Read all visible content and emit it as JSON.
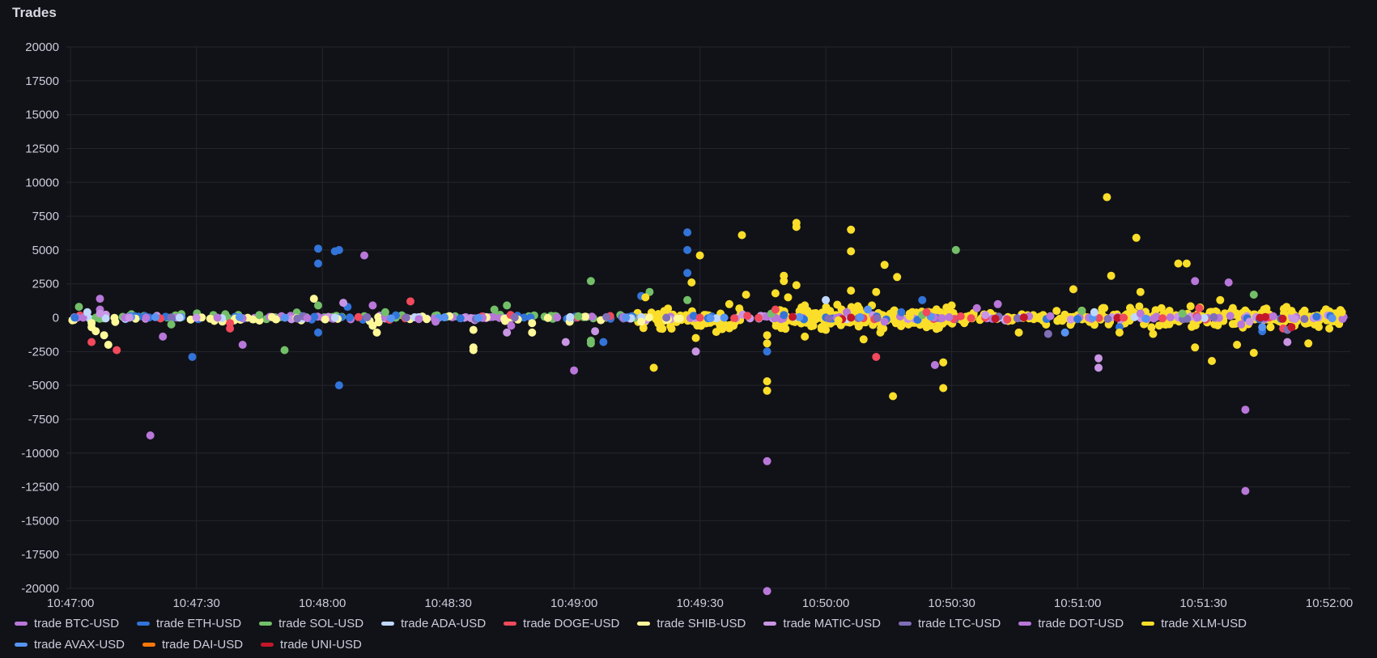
{
  "panel": {
    "title": "Trades"
  },
  "chart_data": {
    "type": "scatter",
    "title": "Trades",
    "xlabel": "",
    "ylabel": "",
    "xlim": [
      "10:46:59",
      "10:52:05"
    ],
    "ylim": [
      -20000,
      20000
    ],
    "x_ticks": [
      "10:47:00",
      "10:47:30",
      "10:48:00",
      "10:48:30",
      "10:49:00",
      "10:49:30",
      "10:50:00",
      "10:50:30",
      "10:51:00",
      "10:51:30",
      "10:52:00"
    ],
    "y_ticks": [
      20000,
      17500,
      15000,
      12500,
      10000,
      7500,
      5000,
      2500,
      0,
      -2500,
      -5000,
      -7500,
      -10000,
      -12500,
      -15000,
      -17500,
      -20000
    ],
    "grid": true,
    "legend_position": "bottom",
    "series": [
      {
        "name": "trade BTC-USD",
        "color": "#b877d9",
        "points": [
          [
            "10:47:03",
            0
          ],
          [
            "10:47:07",
            1400
          ],
          [
            "10:47:07",
            600
          ],
          [
            "10:47:13",
            0
          ],
          [
            "10:47:19",
            -8700
          ],
          [
            "10:47:22",
            -1400
          ],
          [
            "10:47:35",
            0
          ],
          [
            "10:47:41",
            -2000
          ],
          [
            "10:48:10",
            4600
          ],
          [
            "10:48:12",
            900
          ],
          [
            "10:48:23",
            -100
          ],
          [
            "10:48:45",
            -600
          ],
          [
            "10:49:00",
            -3900
          ],
          [
            "10:49:48",
            0
          ],
          [
            "10:50:05",
            400
          ],
          [
            "10:50:26",
            -3500
          ],
          [
            "10:50:36",
            700
          ],
          [
            "10:50:41",
            1000
          ],
          [
            "10:51:15",
            300
          ],
          [
            "10:51:28",
            2700
          ],
          [
            "10:51:40",
            -6800
          ],
          [
            "10:51:40",
            -12800
          ]
        ]
      },
      {
        "name": "trade ETH-USD",
        "color": "#3274d9",
        "points": [
          [
            "10:47:01",
            0
          ],
          [
            "10:47:29",
            -2900
          ],
          [
            "10:47:59",
            5100
          ],
          [
            "10:47:59",
            4000
          ],
          [
            "10:47:59",
            -1100
          ],
          [
            "10:48:03",
            4900
          ],
          [
            "10:48:04",
            5000
          ],
          [
            "10:48:04",
            -5000
          ],
          [
            "10:48:06",
            800
          ],
          [
            "10:49:07",
            -1800
          ],
          [
            "10:49:16",
            1600
          ],
          [
            "10:49:27",
            6300
          ],
          [
            "10:49:27",
            5000
          ],
          [
            "10:49:27",
            3300
          ],
          [
            "10:49:46",
            -2500
          ],
          [
            "10:49:50",
            200
          ],
          [
            "10:50:18",
            400
          ],
          [
            "10:50:23",
            1300
          ],
          [
            "10:51:00",
            -100
          ],
          [
            "10:51:10",
            -700
          ],
          [
            "10:51:44",
            -1000
          ]
        ]
      },
      {
        "name": "trade SOL-USD",
        "color": "#73bf69",
        "points": [
          [
            "10:47:02",
            800
          ],
          [
            "10:47:06",
            0
          ],
          [
            "10:47:24",
            -500
          ],
          [
            "10:47:45",
            200
          ],
          [
            "10:47:51",
            -2400
          ],
          [
            "10:47:59",
            900
          ],
          [
            "10:48:15",
            400
          ],
          [
            "10:48:41",
            600
          ],
          [
            "10:48:44",
            900
          ],
          [
            "10:49:01",
            100
          ],
          [
            "10:49:04",
            2700
          ],
          [
            "10:49:04",
            -1700
          ],
          [
            "10:49:04",
            -1900
          ],
          [
            "10:49:18",
            1900
          ],
          [
            "10:49:27",
            1300
          ],
          [
            "10:49:47",
            300
          ],
          [
            "10:50:23",
            200
          ],
          [
            "10:50:31",
            5000
          ],
          [
            "10:51:01",
            500
          ],
          [
            "10:51:25",
            300
          ],
          [
            "10:51:42",
            1700
          ]
        ]
      },
      {
        "name": "trade ADA-USD",
        "color": "#c0d8ff",
        "points": [
          [
            "10:47:04",
            400
          ],
          [
            "10:47:26",
            0
          ],
          [
            "10:48:03",
            0
          ],
          [
            "10:50:00",
            1300
          ],
          [
            "10:51:04",
            400
          ]
        ]
      },
      {
        "name": "trade DOGE-USD",
        "color": "#f2495c",
        "points": [
          [
            "10:47:05",
            -1800
          ],
          [
            "10:47:11",
            -2400
          ],
          [
            "10:47:38",
            -800
          ],
          [
            "10:47:38",
            -400
          ],
          [
            "10:48:21",
            1200
          ],
          [
            "10:49:30",
            0
          ],
          [
            "10:49:48",
            600
          ],
          [
            "10:50:12",
            -2900
          ],
          [
            "10:50:24",
            400
          ],
          [
            "10:50:38",
            0
          ],
          [
            "10:51:11",
            0
          ],
          [
            "10:51:29",
            700
          ],
          [
            "10:51:49",
            -800
          ]
        ]
      },
      {
        "name": "trade SHIB-USD",
        "color": "#fff899",
        "points": [
          [
            "10:47:05",
            -400
          ],
          [
            "10:47:05",
            -700
          ],
          [
            "10:47:06",
            -1000
          ],
          [
            "10:47:08",
            -1300
          ],
          [
            "10:47:09",
            -2000
          ],
          [
            "10:47:58",
            1400
          ],
          [
            "10:48:12",
            -600
          ],
          [
            "10:48:13",
            -1100
          ],
          [
            "10:48:36",
            -900
          ],
          [
            "10:48:36",
            -2400
          ],
          [
            "10:48:36",
            -2200
          ],
          [
            "10:48:50",
            -400
          ],
          [
            "10:48:50",
            -1100
          ],
          [
            "10:49:16",
            -300
          ]
        ]
      },
      {
        "name": "trade MATIC-USD",
        "color": "#ca95e5",
        "points": [
          [
            "10:47:07",
            300
          ],
          [
            "10:47:14",
            0
          ],
          [
            "10:47:30",
            0
          ],
          [
            "10:48:05",
            1100
          ],
          [
            "10:48:44",
            -1100
          ],
          [
            "10:48:58",
            -1800
          ],
          [
            "10:49:05",
            -1000
          ],
          [
            "10:49:29",
            -2500
          ],
          [
            "10:50:38",
            200
          ],
          [
            "10:51:05",
            -3000
          ],
          [
            "10:51:05",
            -3700
          ],
          [
            "10:51:41",
            -300
          ],
          [
            "10:51:50",
            -1800
          ]
        ]
      },
      {
        "name": "trade LTC-USD",
        "color": "#806eb7",
        "points": [
          [
            "10:48:20",
            0
          ],
          [
            "10:49:22",
            0
          ],
          [
            "10:50:53",
            -1200
          ],
          [
            "10:51:50",
            -900
          ]
        ]
      },
      {
        "name": "trade DOT-USD",
        "color": "#b877d9",
        "points": [
          [
            "10:47:18",
            0
          ],
          [
            "10:48:27",
            -300
          ],
          [
            "10:49:46",
            -10600
          ],
          [
            "10:49:46",
            -20200
          ],
          [
            "10:50:14",
            -300
          ],
          [
            "10:51:36",
            2600
          ],
          [
            "10:51:39",
            -500
          ]
        ]
      },
      {
        "name": "trade XLM-USD",
        "color": "#fade2a",
        "points": [
          [
            "10:49:19",
            -3700
          ],
          [
            "10:49:17",
            1500
          ],
          [
            "10:49:28",
            2600
          ],
          [
            "10:49:29",
            -1500
          ],
          [
            "10:49:30",
            4600
          ],
          [
            "10:49:37",
            1000
          ],
          [
            "10:49:38",
            -600
          ],
          [
            "10:49:40",
            6100
          ],
          [
            "10:49:41",
            1700
          ],
          [
            "10:49:46",
            -1300
          ],
          [
            "10:49:46",
            -1900
          ],
          [
            "10:49:46",
            -4700
          ],
          [
            "10:49:46",
            -5400
          ],
          [
            "10:49:48",
            1800
          ],
          [
            "10:49:50",
            3100
          ],
          [
            "10:49:50",
            2700
          ],
          [
            "10:49:51",
            1500
          ],
          [
            "10:49:53",
            7000
          ],
          [
            "10:49:53",
            6700
          ],
          [
            "10:49:53",
            2400
          ],
          [
            "10:49:55",
            900
          ],
          [
            "10:49:55",
            -1400
          ],
          [
            "10:49:57",
            -600
          ],
          [
            "10:50:00",
            -900
          ],
          [
            "10:50:01",
            500
          ],
          [
            "10:50:03",
            -200
          ],
          [
            "10:50:06",
            6500
          ],
          [
            "10:50:06",
            4900
          ],
          [
            "10:50:06",
            2000
          ],
          [
            "10:50:09",
            -1600
          ],
          [
            "10:50:11",
            900
          ],
          [
            "10:50:12",
            1900
          ],
          [
            "10:50:13",
            -1100
          ],
          [
            "10:50:14",
            3900
          ],
          [
            "10:50:16",
            -5800
          ],
          [
            "10:50:17",
            3000
          ],
          [
            "10:50:20",
            100
          ],
          [
            "10:50:24",
            -700
          ],
          [
            "10:50:28",
            -3300
          ],
          [
            "10:50:28",
            -5200
          ],
          [
            "10:50:30",
            900
          ],
          [
            "10:50:33",
            -400
          ],
          [
            "10:50:46",
            -1100
          ],
          [
            "10:50:55",
            500
          ],
          [
            "10:50:59",
            2100
          ],
          [
            "10:51:06",
            700
          ],
          [
            "10:51:07",
            8900
          ],
          [
            "10:51:08",
            3100
          ],
          [
            "10:51:10",
            -1100
          ],
          [
            "10:51:14",
            5900
          ],
          [
            "10:51:15",
            1900
          ],
          [
            "10:51:18",
            -1200
          ],
          [
            "10:51:20",
            700
          ],
          [
            "10:51:24",
            4000
          ],
          [
            "10:51:26",
            4000
          ],
          [
            "10:51:28",
            -2200
          ],
          [
            "10:51:32",
            -3200
          ],
          [
            "10:51:34",
            1300
          ],
          [
            "10:51:38",
            -2000
          ],
          [
            "10:51:42",
            -2600
          ],
          [
            "10:51:46",
            -700
          ],
          [
            "10:51:51",
            500
          ],
          [
            "10:51:55",
            -1900
          ],
          [
            "10:52:00",
            -800
          ],
          [
            "10:52:03",
            400
          ]
        ]
      },
      {
        "name": "trade AVAX-USD",
        "color": "#5794f2",
        "points": [
          [
            "10:50:10",
            600
          ],
          [
            "10:50:57",
            -1100
          ],
          [
            "10:51:44",
            -700
          ]
        ]
      },
      {
        "name": "trade DAI-USD",
        "color": "#ff780a",
        "points": []
      },
      {
        "name": "trade UNI-USD",
        "color": "#c4162a",
        "points": [
          [
            "10:50:06",
            0
          ],
          [
            "10:51:51",
            -700
          ]
        ]
      }
    ],
    "dense_bands": [
      {
        "series": "trade XLM-USD",
        "from": "10:49:14",
        "to": "10:49:40",
        "center": -200,
        "spread": 1700,
        "count": 70
      },
      {
        "series": "trade XLM-USD",
        "from": "10:49:48",
        "to": "10:50:30",
        "center": 0,
        "spread": 1600,
        "count": 220
      },
      {
        "series": "trade XLM-USD",
        "from": "10:50:30",
        "to": "10:51:00",
        "center": 0,
        "spread": 900,
        "count": 60
      },
      {
        "series": "trade XLM-USD",
        "from": "10:51:00",
        "to": "10:52:03",
        "center": 0,
        "spread": 1500,
        "count": 220
      },
      {
        "series": "trade SOL-USD",
        "from": "10:47:00",
        "to": "10:49:15",
        "center": 100,
        "spread": 500,
        "count": 55
      },
      {
        "series": "trade BTC-USD",
        "from": "10:47:00",
        "to": "10:52:04",
        "center": 0,
        "spread": 300,
        "count": 60
      },
      {
        "series": "trade MATIC-USD",
        "from": "10:47:00",
        "to": "10:52:04",
        "center": 0,
        "spread": 400,
        "count": 45
      },
      {
        "series": "trade ETH-USD",
        "from": "10:47:00",
        "to": "10:52:04",
        "center": 0,
        "spread": 350,
        "count": 55
      },
      {
        "series": "trade SHIB-USD",
        "from": "10:47:00",
        "to": "10:49:30",
        "center": -100,
        "spread": 450,
        "count": 45
      },
      {
        "series": "trade DOGE-USD",
        "from": "10:47:00",
        "to": "10:52:04",
        "center": 0,
        "spread": 400,
        "count": 25
      },
      {
        "series": "trade ADA-USD",
        "from": "10:47:00",
        "to": "10:52:04",
        "center": 0,
        "spread": 250,
        "count": 20
      },
      {
        "series": "trade LTC-USD",
        "from": "10:47:00",
        "to": "10:52:04",
        "center": 0,
        "spread": 300,
        "count": 20
      },
      {
        "series": "trade DOT-USD",
        "from": "10:47:00",
        "to": "10:52:04",
        "center": 0,
        "spread": 300,
        "count": 20
      },
      {
        "series": "trade AVAX-USD",
        "from": "10:47:00",
        "to": "10:52:04",
        "center": 0,
        "spread": 300,
        "count": 18
      },
      {
        "series": "trade UNI-USD",
        "from": "10:49:30",
        "to": "10:52:04",
        "center": 0,
        "spread": 300,
        "count": 8
      }
    ]
  }
}
